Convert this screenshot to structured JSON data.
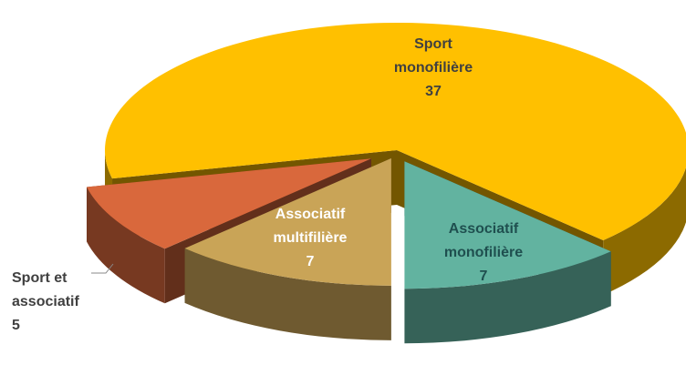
{
  "chart_data": {
    "type": "pie3d",
    "categories": [
      "Associatif monofilière",
      "Associatif multifilière",
      "Sport et associatif",
      "Sport monofilière"
    ],
    "values": [
      7,
      7,
      5,
      37
    ],
    "colors": [
      "#62b3a0",
      "#c9a457",
      "#d9683c",
      "#ffc000"
    ]
  }
}
